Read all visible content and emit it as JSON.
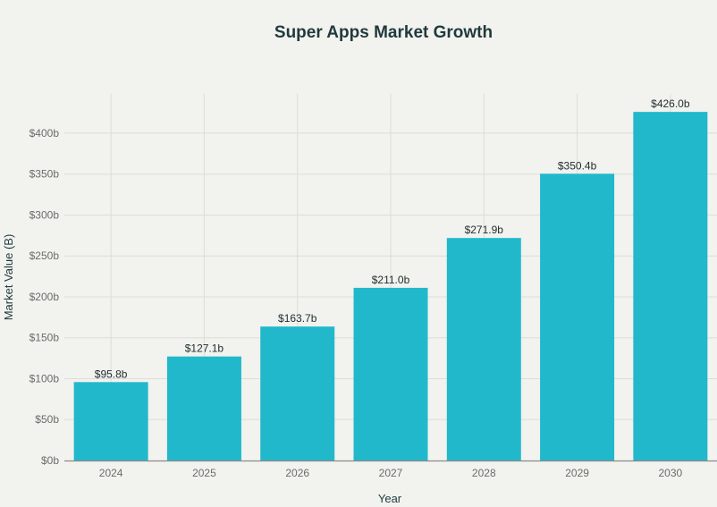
{
  "chart_data": {
    "type": "bar",
    "title": "Super Apps Market Growth",
    "xlabel": "Year",
    "ylabel": "Market Value (B)",
    "categories": [
      "2024",
      "2025",
      "2026",
      "2027",
      "2028",
      "2029",
      "2030"
    ],
    "values": [
      95.8,
      127.1,
      163.7,
      211.0,
      271.9,
      350.4,
      426.0
    ],
    "data_labels": [
      "$95.8b",
      "$127.1b",
      "$163.7b",
      "$211.0b",
      "$271.9b",
      "$350.4b",
      "$426.0b"
    ],
    "ylim": [
      0,
      448
    ],
    "yticks": [
      0,
      50,
      100,
      150,
      200,
      250,
      300,
      350,
      400
    ],
    "ytick_labels": [
      "$0b",
      "$50b",
      "$100b",
      "$150b",
      "$200b",
      "$250b",
      "$300b",
      "$350b",
      "$400b"
    ],
    "grid": true,
    "colors": {
      "bar": "#21b8cc",
      "background": "#f2f2ee",
      "grid": "#dcdcd8"
    }
  }
}
